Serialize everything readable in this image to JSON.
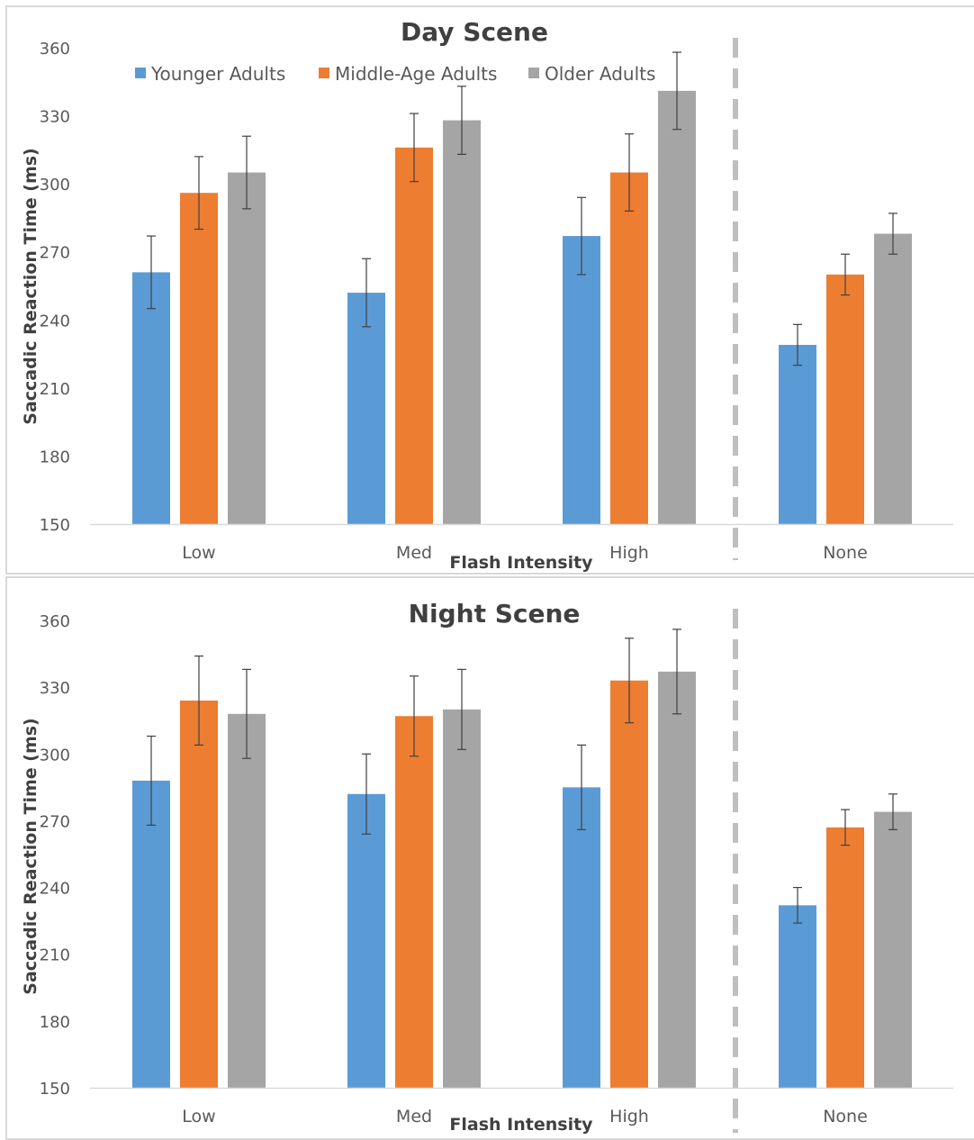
{
  "colors": {
    "younger": "#5b9bd5",
    "middle": "#ed7d31",
    "older": "#a5a5a5",
    "error_bar": "#404040",
    "axis": "#d9d9d9",
    "divider": "#bfbfbf"
  },
  "legend": {
    "younger": "Younger Adults",
    "middle": "Middle-Age Adults",
    "older": "Older Adults"
  },
  "chart_data": [
    {
      "type": "bar",
      "title": "Day Scene",
      "xlabel": "Flash Intensity",
      "ylabel": "Saccadic Reaction Time (ms)",
      "ylim": [
        150,
        360
      ],
      "yticks": [
        150,
        180,
        210,
        240,
        270,
        300,
        330,
        360
      ],
      "categories": [
        "Low",
        "Med",
        "High",
        "None"
      ],
      "legend_position": "top",
      "grid": false,
      "series": [
        {
          "name": "Younger Adults",
          "values": [
            261,
            252,
            277,
            229
          ],
          "error": [
            16,
            15,
            17,
            9
          ]
        },
        {
          "name": "Middle-Age Adults",
          "values": [
            296,
            316,
            305,
            260
          ],
          "error": [
            16,
            15,
            17,
            9
          ]
        },
        {
          "name": "Older Adults",
          "values": [
            305,
            328,
            341,
            278
          ],
          "error": [
            16,
            15,
            17,
            9
          ]
        }
      ]
    },
    {
      "type": "bar",
      "title": "Night Scene",
      "xlabel": "Flash Intensity",
      "ylabel": "Saccadic Reaction Time (ms)",
      "ylim": [
        150,
        360
      ],
      "yticks": [
        150,
        180,
        210,
        240,
        270,
        300,
        330,
        360
      ],
      "categories": [
        "Low",
        "Med",
        "High",
        "None"
      ],
      "grid": false,
      "series": [
        {
          "name": "Younger Adults",
          "values": [
            288,
            282,
            285,
            232
          ],
          "error": [
            20,
            18,
            19,
            8
          ]
        },
        {
          "name": "Middle-Age Adults",
          "values": [
            324,
            317,
            333,
            267
          ],
          "error": [
            20,
            18,
            19,
            8
          ]
        },
        {
          "name": "Older Adults",
          "values": [
            318,
            320,
            337,
            274
          ],
          "error": [
            20,
            18,
            19,
            8
          ]
        }
      ]
    }
  ]
}
